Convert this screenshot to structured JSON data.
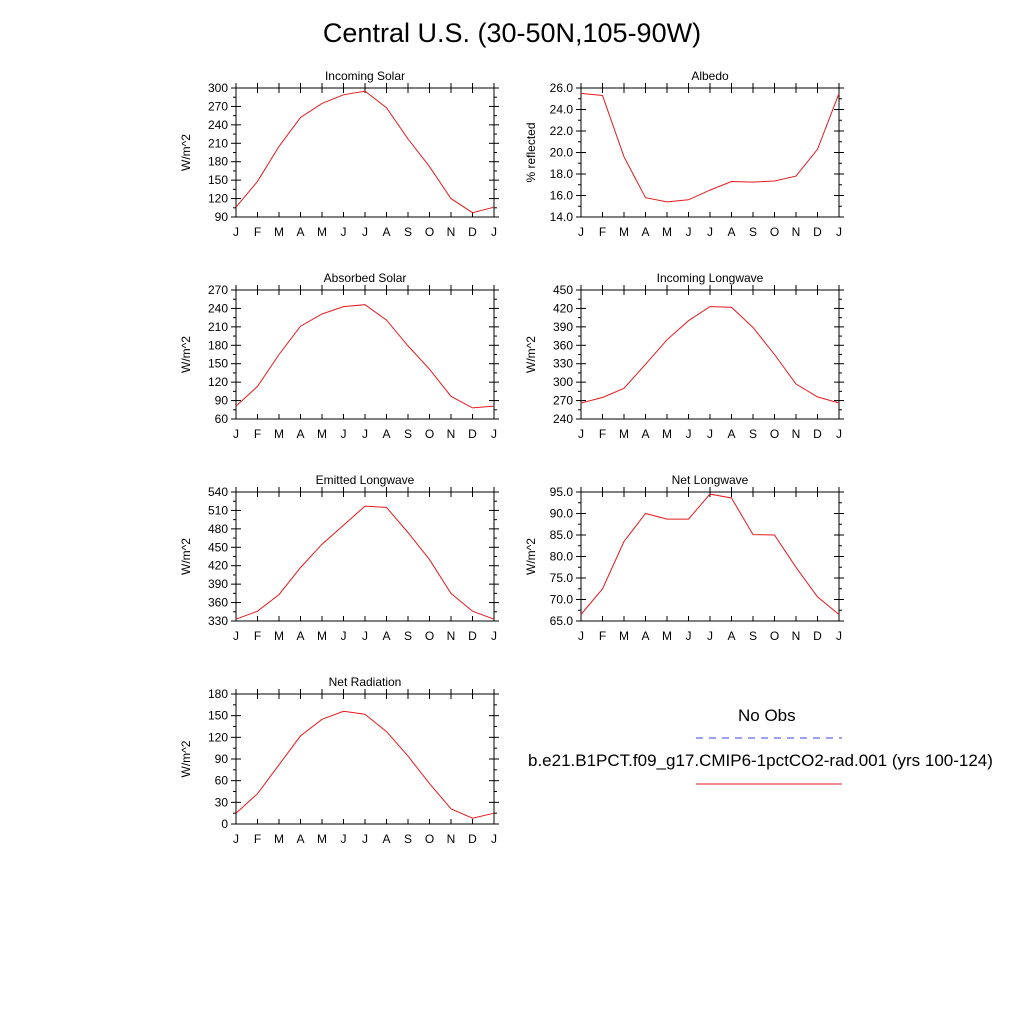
{
  "title": "Central U.S. (30-50N,105-90W)",
  "months": [
    "J",
    "F",
    "M",
    "A",
    "M",
    "J",
    "J",
    "A",
    "S",
    "O",
    "N",
    "D",
    "J"
  ],
  "series_color": "#e41a1c",
  "obs_color": "#3344dd",
  "legend": {
    "obs_label": "No Obs",
    "model_label": "b.e21.B1PCT.f09_g17.CMIP6-1pctCO2-rad.001 (yrs 100-124)"
  },
  "chart_data": [
    {
      "type": "line",
      "title": "Incoming Solar",
      "ylabel": "W/m^2",
      "ylim": [
        90,
        300
      ],
      "yticks": [
        "90",
        "120",
        "150",
        "180",
        "210",
        "240",
        "270",
        "300"
      ],
      "series": [
        {
          "values": [
            106,
            148,
            205,
            252,
            275,
            289,
            295,
            268,
            217,
            172,
            120,
            97,
            106
          ]
        }
      ]
    },
    {
      "type": "line",
      "title": "Albedo",
      "ylabel": "% reflected",
      "ylim": [
        14.0,
        26.0
      ],
      "yticks": [
        "14.0",
        "16.0",
        "18.0",
        "20.0",
        "22.0",
        "24.0",
        "26.0"
      ],
      "series": [
        {
          "values": [
            25.5,
            25.3,
            19.6,
            15.8,
            15.4,
            15.6,
            16.5,
            17.3,
            17.25,
            17.35,
            17.8,
            20.3,
            25.5
          ]
        }
      ]
    },
    {
      "type": "line",
      "title": "Absorbed Solar",
      "ylabel": "W/m^2",
      "ylim": [
        60,
        270
      ],
      "yticks": [
        "60",
        "90",
        "120",
        "150",
        "180",
        "210",
        "240",
        "270"
      ],
      "series": [
        {
          "values": [
            81,
            113,
            165,
            211,
            231,
            243,
            246,
            221,
            179,
            141,
            97,
            78,
            81
          ]
        }
      ]
    },
    {
      "type": "line",
      "title": "Incoming Longwave",
      "ylabel": "W/m^2",
      "ylim": [
        240,
        450
      ],
      "yticks": [
        "240",
        "270",
        "300",
        "330",
        "360",
        "390",
        "420",
        "450"
      ],
      "series": [
        {
          "values": [
            266,
            275,
            290,
            329,
            369,
            400,
            423,
            422,
            389,
            345,
            297,
            276,
            266
          ]
        }
      ]
    },
    {
      "type": "line",
      "title": "Emitted Longwave",
      "ylabel": "W/m^2",
      "ylim": [
        330,
        540
      ],
      "yticks": [
        "330",
        "360",
        "390",
        "420",
        "450",
        "480",
        "510",
        "540"
      ],
      "series": [
        {
          "values": [
            333,
            346,
            373,
            417,
            455,
            486,
            517,
            515,
            474,
            430,
            375,
            346,
            333
          ]
        }
      ]
    },
    {
      "type": "line",
      "title": "Net Longwave",
      "ylabel": "W/m^2",
      "ylim": [
        65.0,
        95.0
      ],
      "yticks": [
        "65.0",
        "70.0",
        "75.0",
        "80.0",
        "85.0",
        "90.0",
        "95.0"
      ],
      "series": [
        {
          "values": [
            66.5,
            72.5,
            83.5,
            90.0,
            88.7,
            88.7,
            94.5,
            93.6,
            85.1,
            85.0,
            77.5,
            70.6,
            66.5
          ]
        }
      ]
    },
    {
      "type": "line",
      "title": "Net Radiation",
      "ylabel": "W/m^2",
      "ylim": [
        0,
        180
      ],
      "yticks": [
        "0",
        "30",
        "60",
        "90",
        "120",
        "150",
        "180"
      ],
      "series": [
        {
          "values": [
            15,
            42,
            82,
            122,
            145,
            156,
            152,
            128,
            94,
            56,
            21,
            8,
            15
          ]
        }
      ]
    }
  ]
}
